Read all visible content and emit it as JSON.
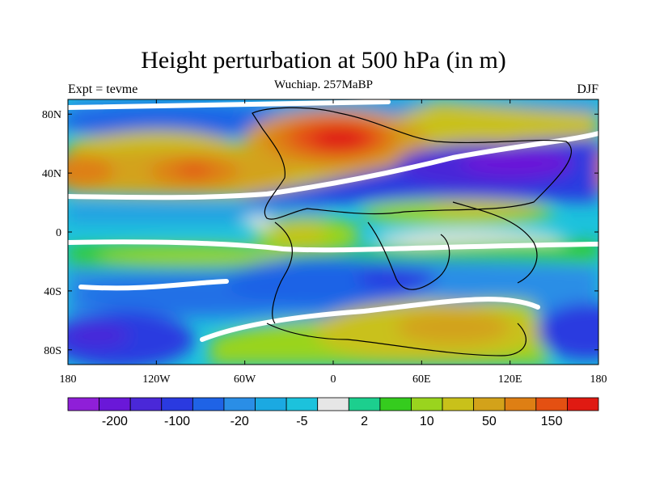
{
  "title": "Height perturbation at 500 hPa (in m)",
  "subtitle": "Wuchiap. 257MaBP",
  "left_label": "Expt = tevme",
  "right_label": "DJF",
  "chart_data": {
    "type": "heatmap",
    "title": "Height perturbation at 500 hPa (in m)",
    "xlim": [
      -180,
      180
    ],
    "ylim": [
      -90,
      90
    ],
    "x_ticks": [
      {
        "value": -180,
        "label": "180"
      },
      {
        "value": -120,
        "label": "120W"
      },
      {
        "value": -60,
        "label": "60W"
      },
      {
        "value": 0,
        "label": "0"
      },
      {
        "value": 60,
        "label": "60E"
      },
      {
        "value": 120,
        "label": "120E"
      },
      {
        "value": 180,
        "label": "180"
      }
    ],
    "y_ticks": [
      {
        "value": 80,
        "label": "80N"
      },
      {
        "value": 40,
        "label": "40N"
      },
      {
        "value": 0,
        "label": "0"
      },
      {
        "value": -40,
        "label": "40S"
      },
      {
        "value": -80,
        "label": "80S"
      }
    ],
    "colorbar": {
      "colors": [
        "#8f1fd8",
        "#6a18d8",
        "#4a28d8",
        "#2a3ae0",
        "#1f63e6",
        "#2a8ee6",
        "#1ba9e2",
        "#1cc2dc",
        "#e6e6e6",
        "#1ccf8e",
        "#35cc1e",
        "#9ad41e",
        "#c9c11a",
        "#d3a21a",
        "#de7f14",
        "#e45012",
        "#e01a12"
      ],
      "labels": [
        {
          "index": 1,
          "text": "-200"
        },
        {
          "index": 3,
          "text": "-100"
        },
        {
          "index": 5,
          "text": "-20"
        },
        {
          "index": 7,
          "text": "-5"
        },
        {
          "index": 9,
          "text": "2"
        },
        {
          "index": 11,
          "text": "10"
        },
        {
          "index": 13,
          "text": "50"
        },
        {
          "index": 15,
          "text": "150"
        }
      ]
    }
  }
}
